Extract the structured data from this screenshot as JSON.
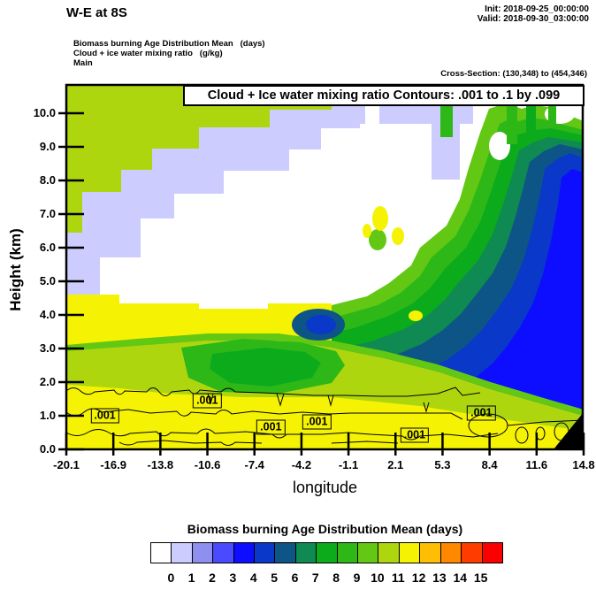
{
  "header": {
    "title": "W-E at 8S",
    "init_line": "Init: 2018-09-25_00:00:00",
    "valid_line": "Valid: 2018-09-30_03:00:00",
    "subtitle_lines": [
      "Biomass burning Age Distribution Mean   (days)",
      "Cloud + ice water mixing ratio   (g/kg)",
      "Main"
    ],
    "cross_section_line": "Cross-Section: (130,348) to (454,346)"
  },
  "chart_data": {
    "type": "heatmap",
    "title": "Cloud + Ice water mixing ratio Contours: .001 to .1 by .099",
    "xlabel": "longitude",
    "ylabel": "Height (km)",
    "x_ticks": [
      "-20.1",
      "-16.9",
      "-13.8",
      "-10.6",
      "-7.4",
      "-4.2",
      "-1.1",
      "2.1",
      "5.3",
      "8.4",
      "11.6",
      "14.8"
    ],
    "y_ticks": [
      "0.0",
      "1.0",
      "2.0",
      "3.0",
      "4.0",
      "5.0",
      "6.0",
      "7.0",
      "8.0",
      "9.0",
      "10.0"
    ],
    "xlim": [
      -20.1,
      14.8
    ],
    "ylim_km": [
      0.0,
      10.9
    ],
    "grid_on": false,
    "fill_variable": "Biomass burning Age Distribution Mean (days)",
    "contour_variable": "Cloud + Ice water mixing ratio (g/kg)",
    "contour_levels_gkg": [
      0.001,
      0.1
    ],
    "contour_label": ".001",
    "contour_label_points": [
      {
        "lon": -17.5,
        "km": 1.0
      },
      {
        "lon": -10.6,
        "km": 1.45
      },
      {
        "lon": -6.3,
        "km": 0.66
      },
      {
        "lon": -3.2,
        "km": 0.82
      },
      {
        "lon": 3.4,
        "km": 0.42
      },
      {
        "lon": 7.9,
        "km": 1.08
      }
    ],
    "grid": {
      "longitudes": [
        -20.1,
        -16.9,
        -13.8,
        -10.6,
        -7.4,
        -4.2,
        -1.1,
        2.1,
        5.3,
        8.4,
        11.6,
        14.8
      ],
      "heights_km_top_down": [
        10.5,
        9.5,
        8.5,
        7.5,
        6.5,
        5.5,
        4.5,
        3.5,
        2.5,
        1.5,
        0.5
      ],
      "age_days_rows_top_down": [
        [
          11.5,
          11.5,
          11.5,
          11.5,
          11.5,
          11.5,
          0.5,
          0.5,
          0.5,
          0.5,
          4.5,
          4.5
        ],
        [
          11.5,
          11.5,
          11.5,
          null,
          null,
          null,
          null,
          null,
          0.5,
          8.5,
          4.5,
          3.5
        ],
        [
          11.5,
          11.5,
          0.5,
          null,
          null,
          null,
          null,
          null,
          8.5,
          5.5,
          3.5,
          3.5
        ],
        [
          11.5,
          0.5,
          null,
          null,
          null,
          null,
          12.5,
          8.5,
          6.5,
          4.5,
          3.5,
          3.5
        ],
        [
          0.5,
          null,
          null,
          null,
          null,
          9.5,
          8.5,
          7.5,
          5.5,
          4.5,
          3.5,
          3.5
        ],
        [
          null,
          null,
          null,
          null,
          10.5,
          9.5,
          7.5,
          6.5,
          5.5,
          4.5,
          3.5,
          4.5
        ],
        [
          12.5,
          12.5,
          null,
          null,
          10.5,
          8.5,
          6.5,
          5.5,
          5.5,
          4.5,
          4.5,
          5.5
        ],
        [
          12.5,
          11.5,
          10.5,
          9.5,
          9.5,
          8.5,
          4.5,
          6.5,
          6.5,
          5.5,
          5.5,
          6.5
        ],
        [
          12.5,
          11.5,
          10.5,
          8.5,
          7.5,
          8.5,
          8.5,
          8.5,
          8.5,
          8.5,
          7.5,
          8.5
        ],
        [
          12.5,
          12.5,
          11.5,
          10.5,
          10.5,
          10.5,
          9.5,
          9.5,
          10.5,
          10.5,
          9.5,
          10.5
        ],
        [
          12.5,
          12.5,
          12.5,
          12.5,
          12.5,
          12.5,
          12.5,
          12.5,
          12.5,
          12.5,
          12.5,
          null
        ]
      ],
      "null_means": "white / no smoke (below 0 days); last bottom-right cell masked by terrain"
    },
    "colorbar": {
      "title": "Biomass burning Age Distribution Mean  (days)",
      "tick_labels": [
        "0",
        "1",
        "2",
        "3",
        "4",
        "5",
        "6",
        "7",
        "8",
        "9",
        "10",
        "11",
        "12",
        "13",
        "14",
        "15"
      ],
      "palette": [
        "#ffffff",
        "#ccccff",
        "#8f8ff0",
        "#4a4aff",
        "#0d0dff",
        "#0a38c8",
        "#0d5586",
        "#0e8a52",
        "#0cab1c",
        "#2eb818",
        "#63c813",
        "#aed60f",
        "#f5f303",
        "#ffbe03",
        "#ff8800",
        "#ff3c00",
        "#fa0000"
      ]
    },
    "legend_position": "bottom",
    "terrain_color": "#000000"
  }
}
